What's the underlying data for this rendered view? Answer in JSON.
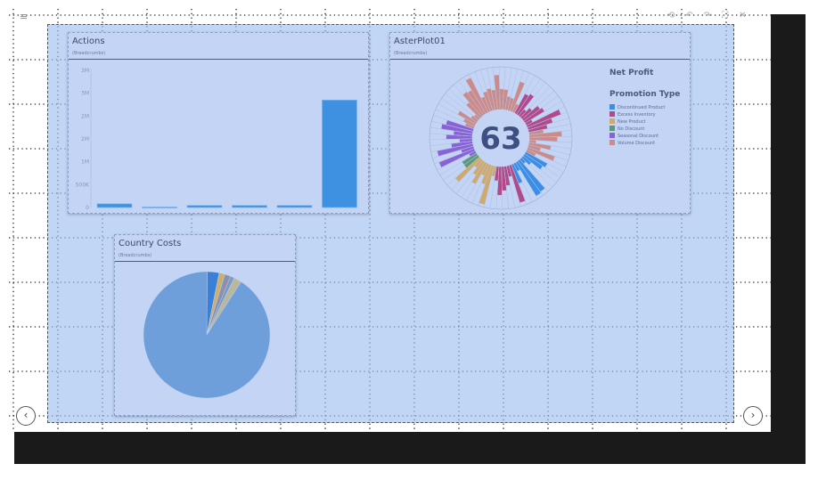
{
  "toolbar": {
    "menu_icon": "hamburger-menu-icon",
    "icons": [
      "reset-icon",
      "undo-icon",
      "redo-icon",
      "fullscreen-icon",
      "close-icon"
    ]
  },
  "actions": {
    "title": "Actions",
    "breadcrumbs": "(Breadcrumbs)"
  },
  "aster": {
    "title": "AsterPlot01",
    "breadcrumbs": "(Breadcrumbs)",
    "center_value": "63",
    "measure_label": "Net Profit",
    "legend_title": "Promotion Type",
    "legend": [
      {
        "label": "Discontinued Product",
        "color": "#3a8ee6"
      },
      {
        "label": "Excess Inventory",
        "color": "#b04a8a"
      },
      {
        "label": "New Product",
        "color": "#d0aa6a"
      },
      {
        "label": "No Discount",
        "color": "#5a9a7a"
      },
      {
        "label": "Seasonal Discount",
        "color": "#8a62d8"
      },
      {
        "label": "Volume Discount",
        "color": "#cc8a88"
      }
    ]
  },
  "country": {
    "title": "Country Costs",
    "breadcrumbs": "(Breadcrumbs)"
  },
  "nav": {
    "prev": "‹",
    "next": "›"
  },
  "chart_data": [
    {
      "type": "bar",
      "title": "Actions",
      "categories": [
        "",
        "",
        "",
        "",
        "",
        ""
      ],
      "values": [
        80000,
        10000,
        45000,
        45000,
        45000,
        2350000
      ],
      "ytick_labels": [
        "0",
        "500K",
        "1M",
        "2M",
        "2M",
        "3M",
        "3M"
      ],
      "ylim": [
        0,
        3000000
      ],
      "color": "#3d91e0"
    },
    {
      "type": "pie",
      "title": "Country Costs",
      "values": [
        91,
        3,
        1.5,
        1.5,
        1,
        2
      ],
      "colors": [
        "#6e9fdb",
        "#3a7fd8",
        "#c9b070",
        "#8d8fb0",
        "#7a9ac0",
        "#b8b8a0"
      ]
    }
  ]
}
